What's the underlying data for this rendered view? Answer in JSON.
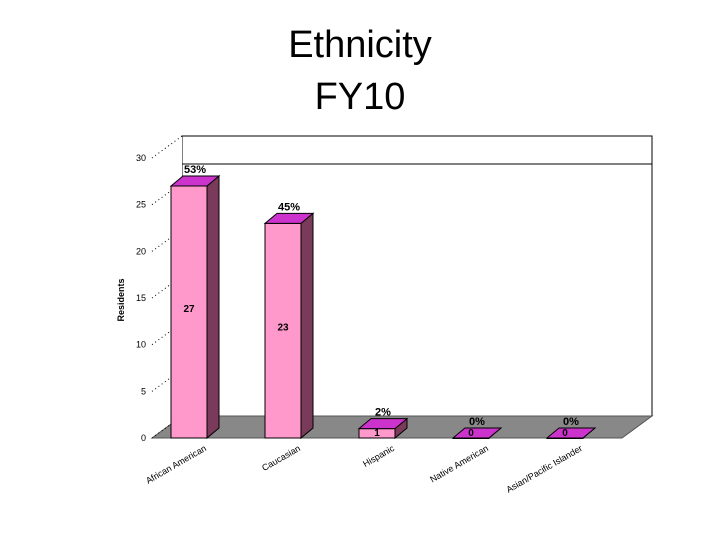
{
  "chart_data": {
    "type": "bar",
    "title_lines": [
      "Ethnicity",
      "FY10"
    ],
    "ylabel": "Residents",
    "xlabel": "",
    "ylim": [
      0,
      30
    ],
    "yticks": [
      0,
      5,
      10,
      15,
      20,
      25,
      30
    ],
    "categories": [
      "African American",
      "Caucasian",
      "Hispanic",
      "Native American",
      "Asian/Pacific Islander"
    ],
    "values": [
      27,
      23,
      1,
      0,
      0
    ],
    "percent_labels": [
      "53%",
      "45%",
      "2%",
      "0%",
      "0%"
    ],
    "bar_color": "#ff99cc",
    "bar_top_color": "#cc33cc",
    "bar_side_color": "#7a3a5a",
    "floor_color": "#888888",
    "grid": false,
    "three_d": true
  }
}
